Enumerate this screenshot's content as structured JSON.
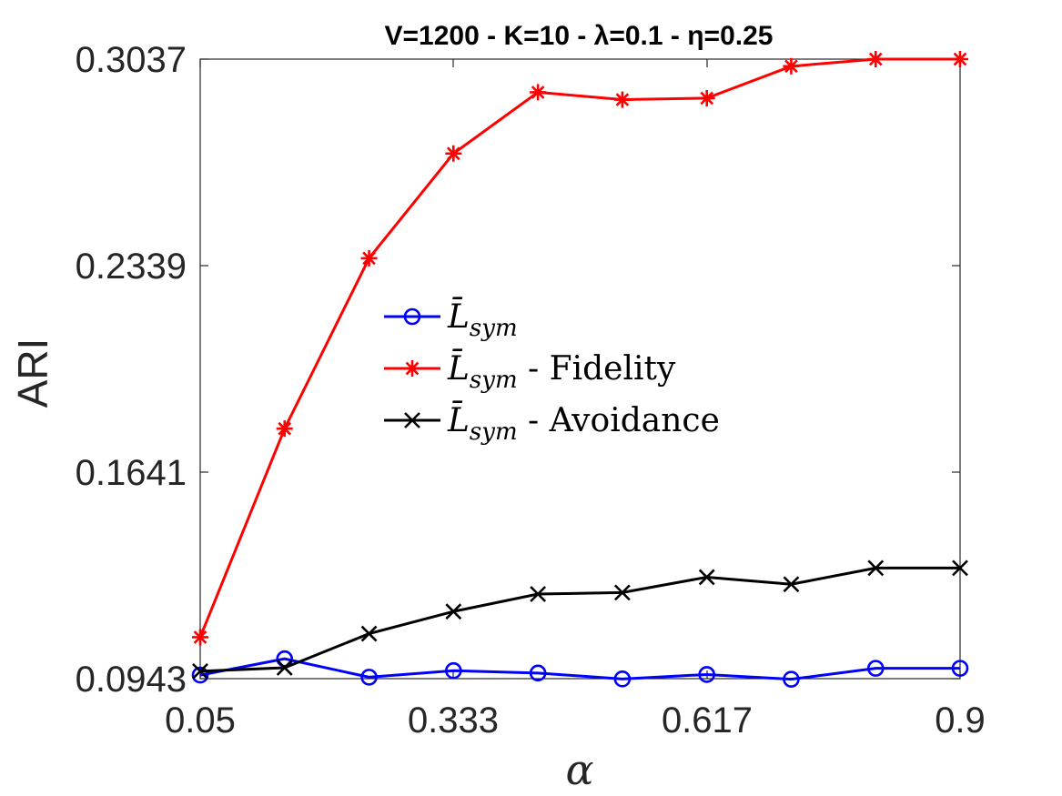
{
  "chart_data": {
    "type": "line",
    "title": "V=1200 - K=10 - λ=0.1 - η=0.25",
    "xlabel": "α",
    "ylabel": "ARI",
    "xlim": [
      0.05,
      0.9
    ],
    "ylim": [
      0.0943,
      0.3037
    ],
    "xticks": [
      0.05,
      0.333,
      0.617,
      0.9
    ],
    "xtick_labels": [
      "0.05",
      "0.333",
      "0.617",
      "0.9"
    ],
    "yticks": [
      0.0943,
      0.1641,
      0.2339,
      0.3037
    ],
    "ytick_labels": [
      "0.0943",
      "0.1641",
      "0.2339",
      "0.3037"
    ],
    "x": [
      0.05,
      0.1444,
      0.2389,
      0.3333,
      0.4278,
      0.5222,
      0.6167,
      0.7111,
      0.8056,
      0.9
    ],
    "series": [
      {
        "name": "L̄sym",
        "legend_main": "L̄",
        "legend_sub": "sym",
        "legend_suffix": "",
        "color": "#0000ff",
        "marker": "circle",
        "values": [
          0.0955,
          0.101,
          0.0948,
          0.097,
          0.0962,
          0.0942,
          0.0957,
          0.0941,
          0.0978,
          0.0978
        ]
      },
      {
        "name": "L̄sym - Fidelity",
        "legend_main": "L̄",
        "legend_sub": "sym",
        "legend_suffix": " - Fidelity",
        "color": "#ff0000",
        "marker": "asterisk",
        "values": [
          0.1083,
          0.1788,
          0.2364,
          0.2718,
          0.2925,
          0.29,
          0.2905,
          0.3013,
          0.3037,
          0.3037
        ]
      },
      {
        "name": "L̄sym - Avoidance",
        "legend_main": "L̄",
        "legend_sub": "sym",
        "legend_suffix": " - Avoidance",
        "color": "#000000",
        "marker": "x",
        "values": [
          0.0968,
          0.098,
          0.1095,
          0.117,
          0.1229,
          0.1234,
          0.1286,
          0.1262,
          0.1317,
          0.1317
        ]
      }
    ],
    "legend_position": "center",
    "grid": false
  }
}
